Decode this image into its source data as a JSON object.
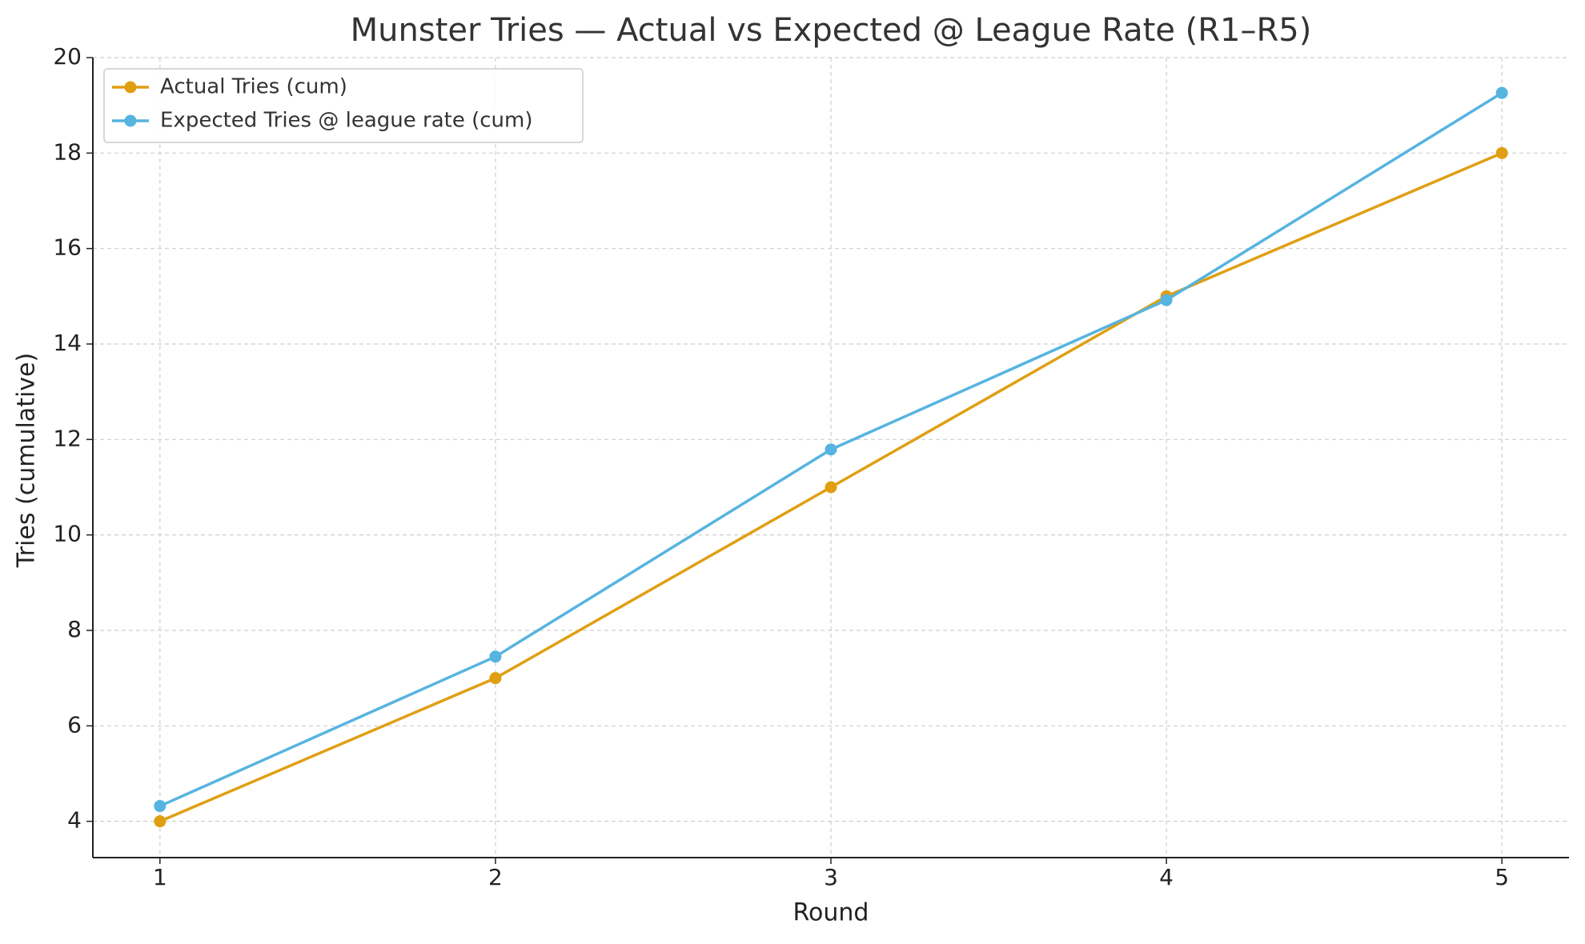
{
  "chart_data": {
    "type": "line",
    "title": "Munster Tries — Actual vs Expected @ League Rate (R1–R5)",
    "x_label": "Round",
    "y_label": "Tries (cumulative)",
    "x": [
      1,
      2,
      3,
      4,
      5
    ],
    "series": [
      {
        "name": "Actual Tries (cum)",
        "color": "#e09f12",
        "values": [
          4,
          7,
          11,
          15,
          18
        ]
      },
      {
        "name": "Expected Tries @ league rate (cum)",
        "color": "#56b4e0",
        "values": [
          4.32,
          7.45,
          11.79,
          14.92,
          19.26
        ]
      }
    ],
    "xlim": [
      0.8,
      5.2
    ],
    "xticks": [
      1,
      2,
      3,
      4,
      5
    ],
    "ylim": [
      3.24,
      20
    ],
    "yticks": [
      4,
      6,
      8,
      10,
      12,
      14,
      16,
      18,
      20
    ],
    "grid": true,
    "legend": "upper-left"
  }
}
